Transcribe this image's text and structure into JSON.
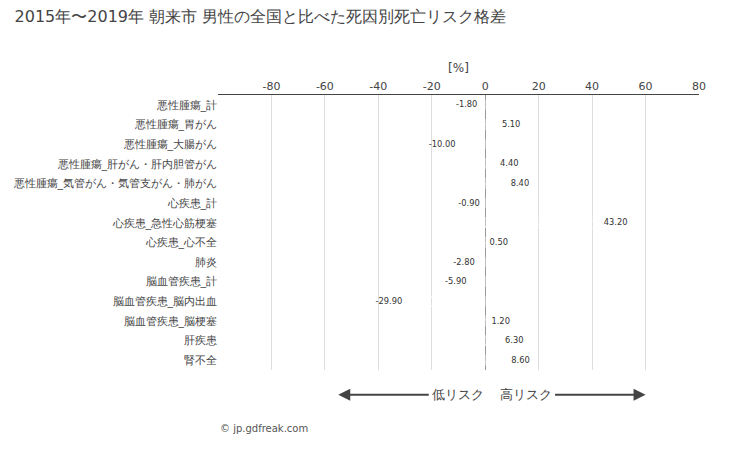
{
  "chart_data": {
    "type": "bar",
    "orientation": "horizontal",
    "title": "2015年〜2019年 朝来市 男性の全国と比べた死因別死亡リスク格差",
    "xlabel": "[%]",
    "categories": [
      "悪性腫瘍_計",
      "悪性腫瘍_胃がん",
      "悪性腫瘍_大腸がん",
      "悪性腫瘍_肝がん・肝内胆管がん",
      "悪性腫瘍_気管がん・気管支がん・肺がん",
      "心疾患_計",
      "心疾患_急性心筋梗塞",
      "心疾患_心不全",
      "肺炎",
      "脳血管疾患_計",
      "脳血管疾患_脳内出血",
      "脳血管疾患_脳梗塞",
      "肝疾患",
      "腎不全"
    ],
    "values": [
      -1.8,
      5.1,
      -10.0,
      4.4,
      8.4,
      -0.9,
      43.2,
      0.5,
      -2.8,
      -5.9,
      -29.9,
      1.2,
      6.3,
      8.6
    ],
    "value_labels": [
      "-1.80",
      "5.10",
      "-10.00",
      "4.40",
      "8.40",
      "-0.90",
      "43.20",
      "0.50",
      "-2.80",
      "-5.90",
      "-29.90",
      "1.20",
      "6.30",
      "8.60"
    ],
    "data_labels": true,
    "color": "#F4A460",
    "xlim": [
      -100,
      80
    ],
    "xticks": [
      -80,
      -60,
      -40,
      -20,
      0,
      20,
      40,
      60,
      80
    ],
    "grid": true,
    "annotations": [
      "低リスク",
      "高リスク",
      "© jp.gdfreak.com"
    ]
  }
}
